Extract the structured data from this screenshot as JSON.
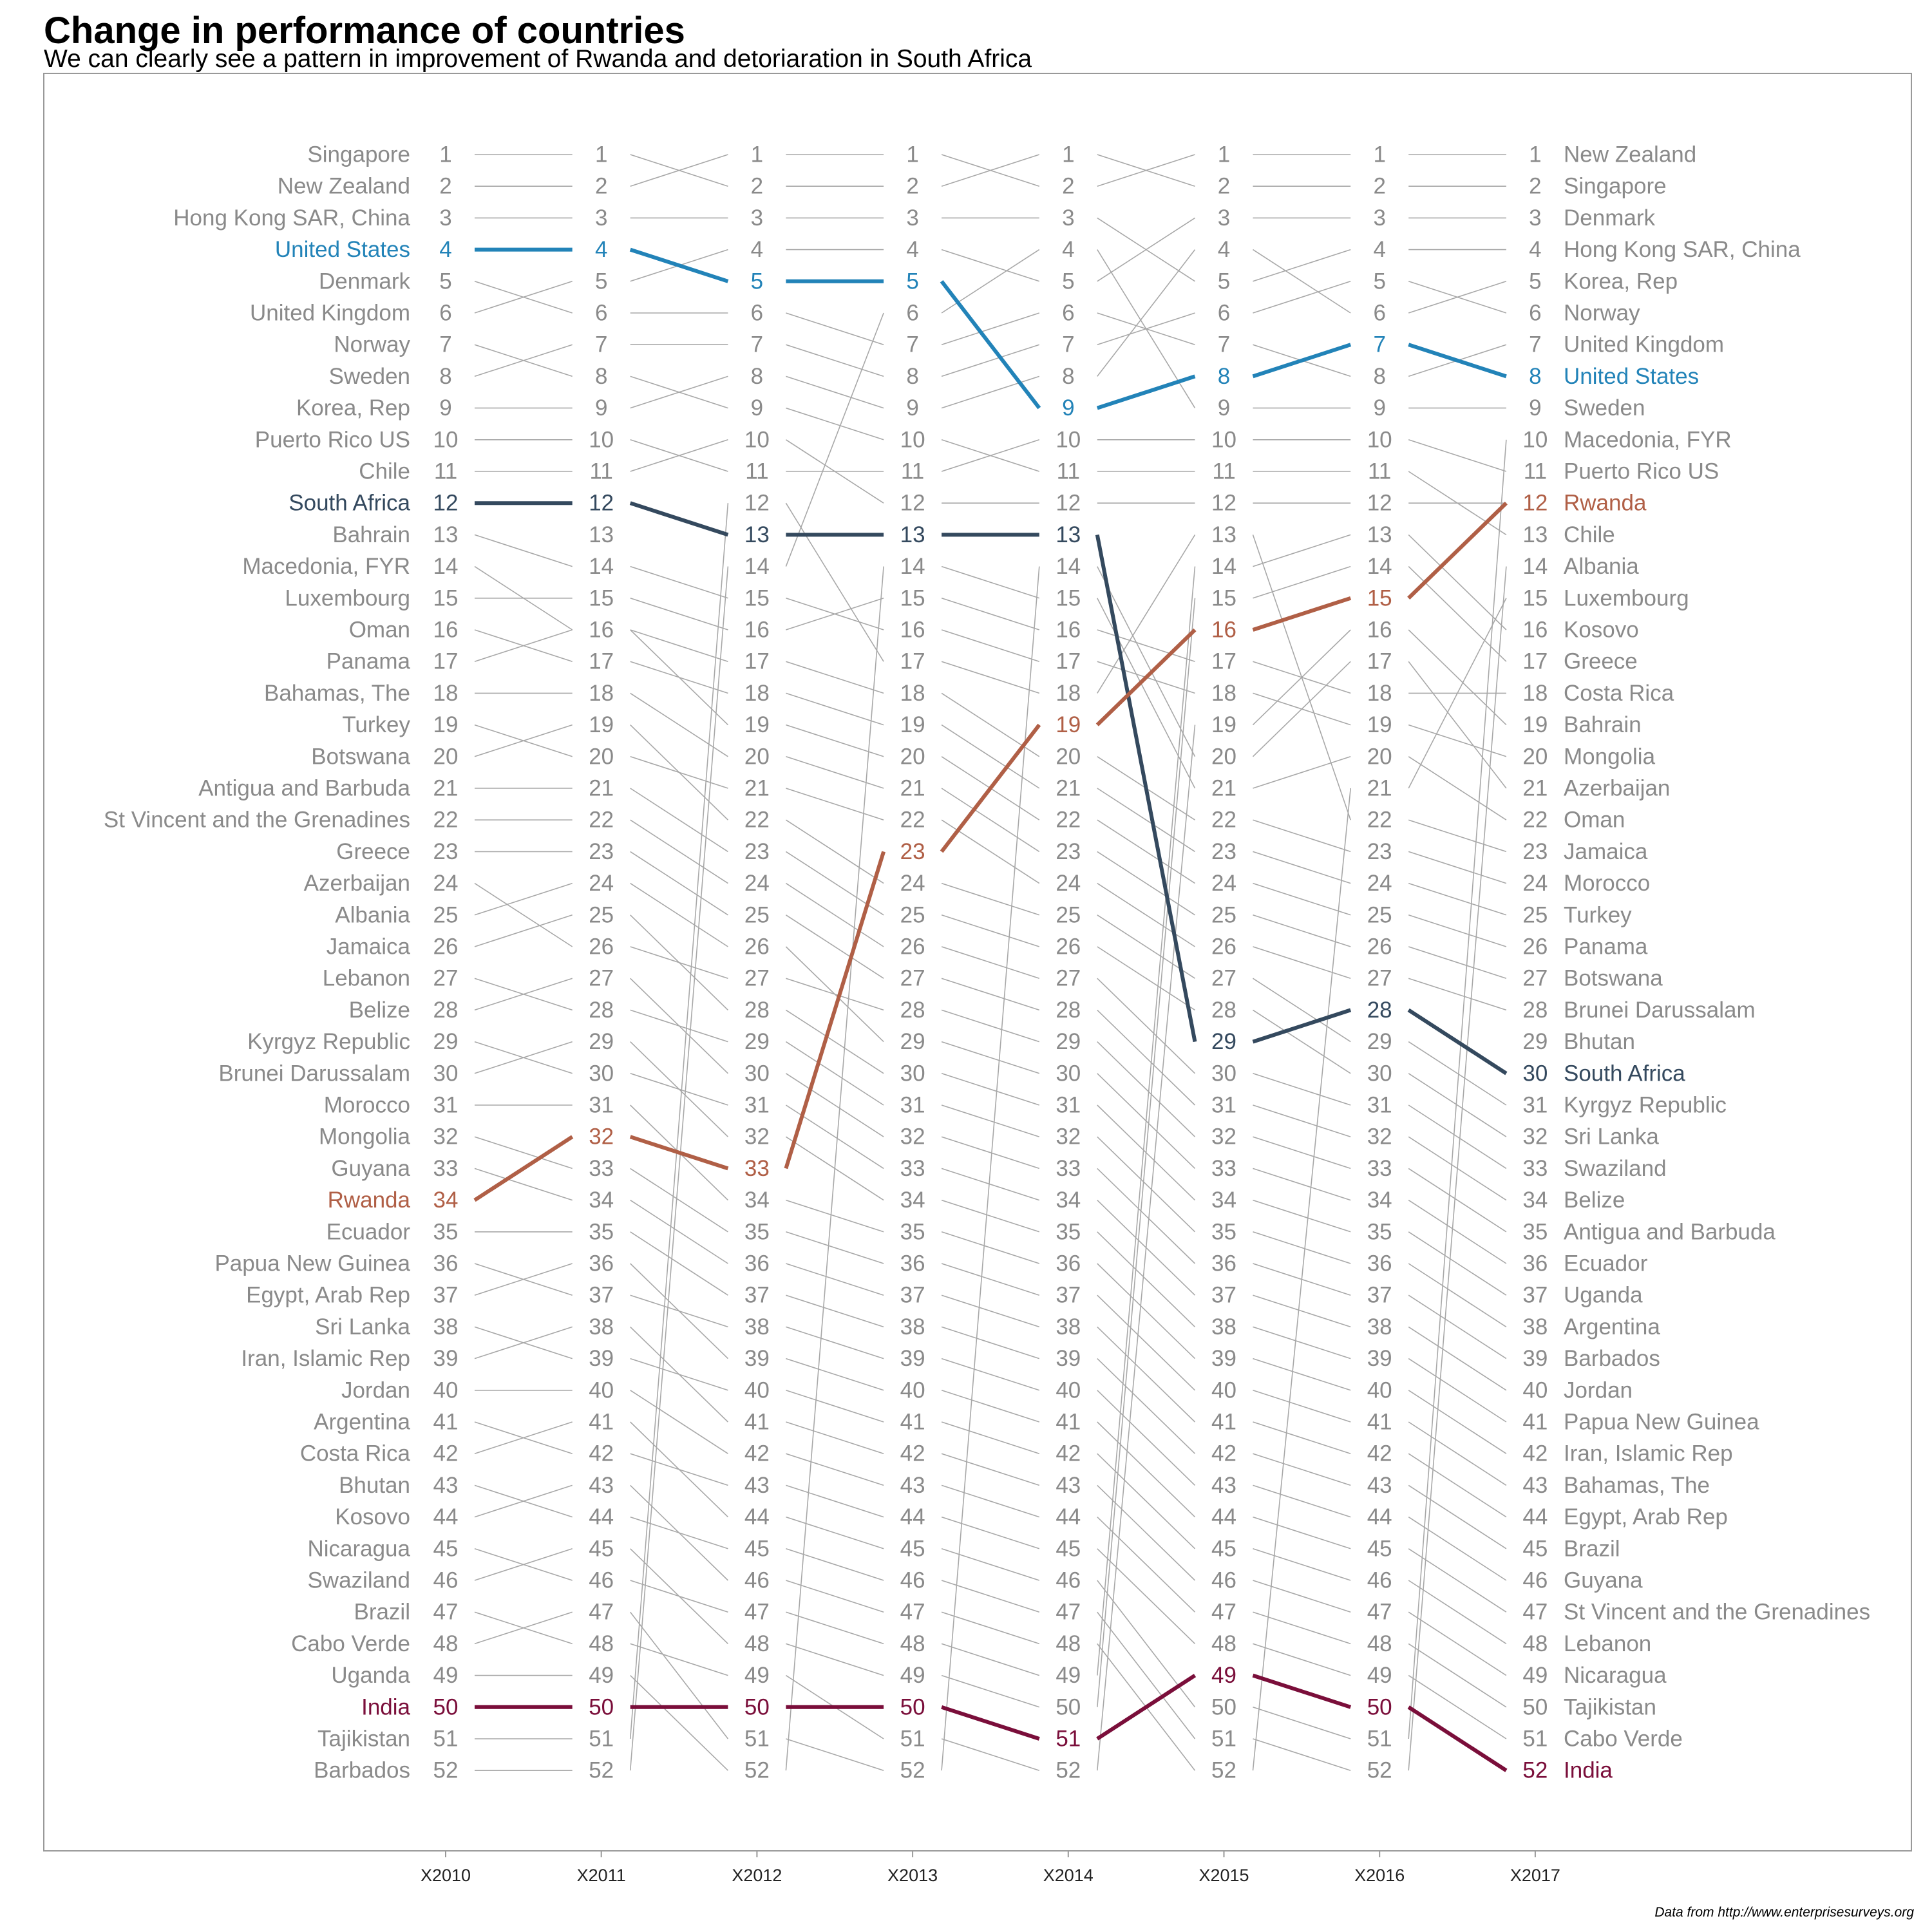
{
  "chart_data": {
    "type": "line",
    "title": "Change in performance of countries",
    "subtitle": "We can clearly see a pattern in improvement of Rwanda and detoriaration in South Africa",
    "caption": "Data from http://www.enterprisesurveys.org",
    "x": [
      "X2010",
      "X2011",
      "X2012",
      "X2013",
      "X2014",
      "X2015",
      "X2016",
      "X2017"
    ],
    "ylim": [
      1,
      52
    ],
    "legend": "none",
    "grid": false,
    "colors": {
      "default": "#a8a8a8",
      "label": "#8a8a8a",
      "United States": "#2283b8",
      "South Africa": "#34495e",
      "Rwanda": "#b05f46",
      "India": "#7a0e3a"
    },
    "highlight": [
      "United States",
      "South Africa",
      "Rwanda",
      "India"
    ],
    "start_labels": [
      "Singapore",
      "New Zealand",
      "Hong Kong SAR, China",
      "United States",
      "Denmark",
      "United Kingdom",
      "Norway",
      "Sweden",
      "Korea, Rep",
      "Puerto Rico US",
      "Chile",
      "South Africa",
      "Bahrain",
      "Macedonia, FYR",
      "Luxembourg",
      "Oman",
      "Panama",
      "Bahamas, The",
      "Turkey",
      "Botswana",
      "Antigua and Barbuda",
      "St Vincent and the Grenadines",
      "Greece",
      "Azerbaijan",
      "Albania",
      "Jamaica",
      "Lebanon",
      "Belize",
      "Kyrgyz Republic",
      "Brunei Darussalam",
      "Morocco",
      "Mongolia",
      "Guyana",
      "Rwanda",
      "Ecuador",
      "Papua New Guinea",
      "Egypt, Arab Rep",
      "Sri Lanka",
      "Iran, Islamic Rep",
      "Jordan",
      "Argentina",
      "Costa Rica",
      "Bhutan",
      "Kosovo",
      "Nicaragua",
      "Swaziland",
      "Brazil",
      "Cabo Verde",
      "Uganda",
      "India",
      "Tajikistan",
      "Barbados"
    ],
    "end_labels": [
      "New Zealand",
      "Singapore",
      "Denmark",
      "Hong Kong SAR, China",
      "Korea, Rep",
      "Norway",
      "United Kingdom",
      "United States",
      "Sweden",
      "Macedonia, FYR",
      "Puerto Rico US",
      "Rwanda",
      "Chile",
      "Albania",
      "Luxembourg",
      "Kosovo",
      "Greece",
      "Costa Rica",
      "Bahrain",
      "Mongolia",
      "Azerbaijan",
      "Oman",
      "Jamaica",
      "Morocco",
      "Turkey",
      "Panama",
      "Botswana",
      "Brunei Darussalam",
      "Bhutan",
      "South Africa",
      "Kyrgyz Republic",
      "Sri Lanka",
      "Swaziland",
      "Belize",
      "Antigua and Barbuda",
      "Ecuador",
      "Uganda",
      "Argentina",
      "Barbados",
      "Jordan",
      "Papua New Guinea",
      "Iran, Islamic Rep",
      "Bahamas, The",
      "Egypt, Arab Rep",
      "Brazil",
      "Guyana",
      "St Vincent and the Grenadines",
      "Lebanon",
      "Nicaragua",
      "Tajikistan",
      "Cabo Verde",
      "India"
    ],
    "series": [
      {
        "name": "United States",
        "values": [
          4,
          4,
          5,
          5,
          9,
          8,
          7,
          8
        ]
      },
      {
        "name": "South Africa",
        "values": [
          12,
          12,
          13,
          13,
          13,
          29,
          28,
          30
        ]
      },
      {
        "name": "Rwanda",
        "values": [
          34,
          32,
          33,
          23,
          19,
          16,
          15,
          12
        ]
      },
      {
        "name": "India",
        "values": [
          50,
          50,
          50,
          50,
          51,
          49,
          50,
          52
        ]
      },
      {
        "name": "",
        "values": [
          1,
          1,
          2,
          2,
          1,
          2,
          2,
          2
        ]
      },
      {
        "name": "",
        "values": [
          2,
          2,
          1,
          1,
          2,
          1,
          1,
          1
        ]
      },
      {
        "name": "",
        "values": [
          3,
          3,
          3,
          3,
          3,
          5,
          4,
          4
        ]
      },
      {
        "name": "",
        "values": [
          5,
          6,
          6,
          7,
          6,
          7,
          8,
          7
        ]
      },
      {
        "name": "",
        "values": [
          6,
          5,
          4,
          4,
          5,
          3,
          3,
          3
        ]
      },
      {
        "name": "",
        "values": [
          7,
          8,
          9,
          10,
          11,
          11,
          11,
          13
        ]
      },
      {
        "name": "",
        "values": [
          8,
          7,
          7,
          8,
          7,
          6,
          5,
          6
        ]
      },
      {
        "name": "",
        "values": [
          9,
          9,
          8,
          9,
          8,
          4,
          6,
          5
        ]
      },
      {
        "name": "",
        "values": [
          10,
          10,
          11,
          11,
          10,
          10,
          10,
          11
        ]
      },
      {
        "name": "",
        "values": [
          11,
          11,
          10,
          12,
          12,
          12,
          12,
          12
        ]
      },
      {
        "name": "",
        "values": [
          13,
          14,
          15,
          16,
          17,
          18,
          19,
          20
        ]
      },
      {
        "name": "",
        "values": [
          14,
          16,
          17,
          18,
          20,
          22,
          23,
          24
        ]
      },
      {
        "name": "",
        "values": [
          15,
          15,
          16,
          15,
          16,
          17,
          18,
          18
        ]
      },
      {
        "name": "",
        "values": [
          16,
          17,
          18,
          19,
          21,
          23,
          24,
          25
        ]
      },
      {
        "name": "",
        "values": [
          17,
          16,
          19,
          20,
          22,
          24,
          25,
          26
        ]
      },
      {
        "name": "",
        "values": [
          18,
          18,
          20,
          21,
          23,
          25,
          26,
          27
        ]
      },
      {
        "name": "",
        "values": [
          19,
          20,
          21,
          22,
          24,
          26,
          27,
          28
        ]
      },
      {
        "name": "",
        "values": [
          20,
          19,
          22,
          24,
          25,
          27,
          29,
          31
        ]
      },
      {
        "name": "",
        "values": [
          21,
          21,
          23,
          25,
          26,
          28,
          30,
          32
        ]
      },
      {
        "name": "",
        "values": [
          22,
          22,
          24,
          26,
          27,
          30,
          31,
          33
        ]
      },
      {
        "name": "",
        "values": [
          23,
          23,
          25,
          27,
          28,
          31,
          32,
          34
        ]
      },
      {
        "name": "",
        "values": [
          24,
          26,
          27,
          28,
          29,
          32,
          33,
          35
        ]
      },
      {
        "name": "",
        "values": [
          25,
          24,
          26,
          29,
          30,
          33,
          34,
          36
        ]
      },
      {
        "name": "",
        "values": [
          26,
          25,
          28,
          30,
          31,
          34,
          35,
          37
        ]
      },
      {
        "name": "",
        "values": [
          27,
          28,
          29,
          31,
          32,
          35,
          36,
          38
        ]
      },
      {
        "name": "",
        "values": [
          28,
          27,
          30,
          32,
          33,
          36,
          37,
          39
        ]
      },
      {
        "name": "",
        "values": [
          29,
          30,
          31,
          33,
          34,
          37,
          38,
          40
        ]
      },
      {
        "name": "",
        "values": [
          30,
          29,
          32,
          34,
          35,
          38,
          39,
          41
        ]
      },
      {
        "name": "",
        "values": [
          31,
          31,
          34,
          35,
          36,
          39,
          40,
          42
        ]
      },
      {
        "name": "",
        "values": [
          32,
          33,
          35,
          36,
          37,
          40,
          41,
          43
        ]
      },
      {
        "name": "",
        "values": [
          33,
          34,
          36,
          37,
          38,
          41,
          42,
          44
        ]
      },
      {
        "name": "",
        "values": [
          35,
          35,
          37,
          38,
          39,
          42,
          43,
          45
        ]
      },
      {
        "name": "",
        "values": [
          36,
          37,
          38,
          39,
          40,
          43,
          44,
          46
        ]
      },
      {
        "name": "",
        "values": [
          37,
          36,
          39,
          40,
          41,
          44,
          45,
          47
        ]
      },
      {
        "name": "",
        "values": [
          38,
          39,
          40,
          41,
          42,
          45,
          46,
          48
        ]
      },
      {
        "name": "",
        "values": [
          39,
          38,
          41,
          42,
          43,
          46,
          47,
          49
        ]
      },
      {
        "name": "",
        "values": [
          40,
          40,
          42,
          43,
          44,
          47,
          48,
          50
        ]
      },
      {
        "name": "",
        "values": [
          41,
          42,
          43,
          44,
          45,
          48,
          49,
          51
        ]
      },
      {
        "name": "",
        "values": [
          42,
          41,
          44,
          45,
          46,
          50,
          51,
          10
        ]
      },
      {
        "name": "",
        "values": [
          43,
          44,
          45,
          46,
          47,
          51,
          52,
          14
        ]
      },
      {
        "name": "",
        "values": [
          44,
          43,
          46,
          47,
          48,
          52,
          21,
          15
        ]
      },
      {
        "name": "",
        "values": [
          45,
          46,
          47,
          48,
          49,
          14,
          13,
          16
        ]
      },
      {
        "name": "",
        "values": [
          46,
          45,
          48,
          49,
          50,
          15,
          14,
          17
        ]
      },
      {
        "name": "",
        "values": [
          47,
          48,
          49,
          51,
          52,
          19,
          16,
          19
        ]
      },
      {
        "name": "",
        "values": [
          48,
          47,
          51,
          52,
          14,
          20,
          17,
          21
        ]
      },
      {
        "name": "",
        "values": [
          49,
          49,
          52,
          14,
          15,
          21,
          20,
          22
        ]
      },
      {
        "name": "",
        "values": [
          51,
          51,
          12,
          17,
          18,
          13,
          22,
          23
        ]
      },
      {
        "name": "",
        "values": [
          52,
          52,
          14,
          6,
          4,
          9,
          9,
          9
        ]
      }
    ]
  }
}
